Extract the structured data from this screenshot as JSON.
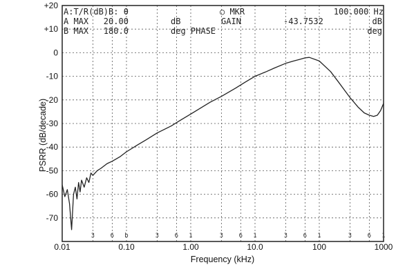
{
  "header": {
    "line1_left": "A:T/R(dB)B: θ",
    "line1_mkr": "○ MKR",
    "line1_freq": "100.000 Hz",
    "line2_left": "A MAX   20.00",
    "line2_unit": "dB",
    "line2_mid": "GAIN",
    "line2_val": "-43.7532",
    "line2_valunit": "dB",
    "line3_left": "B MAX   180.0",
    "line3_unit": "deg PHASE",
    "line3_valunit": "deg"
  },
  "minor_labels": [
    "3",
    "6",
    "b",
    "3",
    "6",
    "1",
    "3",
    "6",
    "1",
    "3",
    "6",
    "1",
    "3",
    "6",
    "1",
    "3",
    "6"
  ],
  "chart_data": {
    "type": "line",
    "title": "",
    "xlabel": "Frequency (kHz)",
    "ylabel": "PSRR (dB/decade)",
    "xscale": "log",
    "xlim": [
      0.01,
      1000
    ],
    "ylim": [
      -80,
      20
    ],
    "xticks": [
      0.01,
      0.1,
      1,
      10,
      100,
      1000
    ],
    "xtick_labels": [
      "0.01",
      "0.10",
      "1.00",
      "10.0",
      "100",
      "1000"
    ],
    "yticks": [
      20,
      10,
      0,
      -10,
      -20,
      -30,
      -40,
      -50,
      -60,
      -70
    ],
    "ytick_labels": [
      "+20",
      "+10",
      "0",
      "-10",
      "-20",
      "-30",
      "-40",
      "-50",
      "-60",
      "-70"
    ],
    "grid": true,
    "series": [
      {
        "values_x": [
          0.01,
          0.011,
          0.012,
          0.013,
          0.014,
          0.015,
          0.016,
          0.017,
          0.018,
          0.019,
          0.02,
          0.022,
          0.024,
          0.026,
          0.028,
          0.03,
          0.035,
          0.04,
          0.05,
          0.06,
          0.08,
          0.1,
          0.15,
          0.2,
          0.3,
          0.5,
          0.7,
          1.0,
          2.0,
          3.0,
          5.0,
          7.0,
          10,
          15,
          20,
          30,
          40,
          50,
          60,
          70,
          100,
          150,
          200,
          300,
          400,
          500,
          600,
          700,
          800,
          900,
          1000
        ],
        "values_y": [
          -56,
          -61,
          -58,
          -64,
          -75,
          -60,
          -57,
          -62,
          -55,
          -59,
          -54,
          -57,
          -53,
          -55,
          -51,
          -52,
          -50,
          -49,
          -47,
          -46,
          -44,
          -42,
          -39,
          -37,
          -34,
          -31,
          -28.5,
          -26,
          -21,
          -18.5,
          -15,
          -12.5,
          -10,
          -8,
          -6.5,
          -4.5,
          -3.5,
          -2.8,
          -2.2,
          -2.0,
          -3.5,
          -8,
          -12.5,
          -19,
          -23,
          -25.5,
          -26.5,
          -27,
          -26.5,
          -24.5,
          -21.5
        ]
      }
    ]
  }
}
